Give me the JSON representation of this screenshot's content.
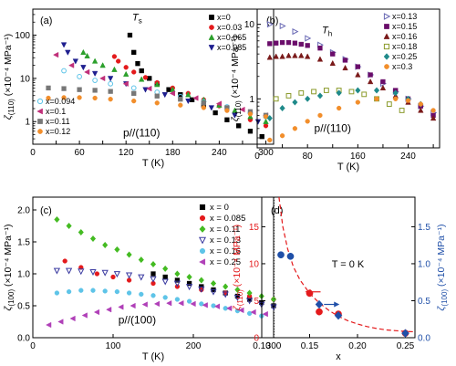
{
  "figure": {
    "panel_labels": [
      "(a)",
      "(b)",
      "(c)",
      "(d)"
    ]
  },
  "chart_data": [
    {
      "panel": "(a)",
      "type": "scatter",
      "yscale": "log",
      "xlabel": "T (K)",
      "ylabel_main": "ζ",
      "ylabel_sub": "(110)",
      "ylabel_unit": " (×10⁻⁴ MPa⁻¹)",
      "xlim": [
        0,
        310
      ],
      "ylim": [
        0.3,
        400
      ],
      "xticks": [
        0,
        30,
        60,
        90,
        120,
        150,
        180,
        210,
        240,
        270,
        300
      ],
      "xtick_labels": [
        "0",
        "",
        "60",
        "",
        "120",
        "",
        "180",
        "",
        "240",
        "",
        "300"
      ],
      "yticks": [
        1,
        10,
        100
      ],
      "ytick_labels": [
        "1",
        "10",
        "100"
      ],
      "annotations": [
        {
          "text": "T",
          "sub": "s"
        }
      ],
      "condition": "p//(110)",
      "legend_top": "top-right",
      "legend_bottom": "bottom-left",
      "series": [
        {
          "name": "x=0",
          "color": "#000000",
          "marker": "square",
          "legend": "top",
          "x": [
            125,
            130,
            135,
            140,
            150,
            160,
            175,
            190,
            205,
            220,
            235,
            250,
            265,
            280,
            295
          ],
          "y": [
            100,
            40,
            22,
            15,
            10,
            7.5,
            5.5,
            4.2,
            3.2,
            2.4,
            1.6,
            1.1,
            0.8,
            0.6,
            0.45
          ]
        },
        {
          "name": "x=0.03",
          "color": "#e41a1c",
          "marker": "circle",
          "legend": "top",
          "x": [
            105,
            110,
            120,
            130,
            145,
            160,
            180,
            200,
            220,
            240,
            260,
            280,
            300
          ],
          "y": [
            32,
            25,
            18,
            14,
            10.5,
            8,
            6,
            4.5,
            3.2,
            2.3,
            1.6,
            1.1,
            0.8
          ]
        },
        {
          "name": "x=0.065",
          "color": "#2ca02c",
          "marker": "triangle-up",
          "legend": "top",
          "x": [
            65,
            70,
            80,
            90,
            105,
            120,
            140,
            160,
            180,
            200,
            220,
            240,
            260,
            280,
            300
          ],
          "y": [
            40,
            33,
            25,
            20,
            16,
            12.5,
            9.5,
            7.2,
            5.5,
            4.2,
            3.2,
            2.4,
            1.8,
            1.3,
            1.0
          ]
        },
        {
          "name": "x=0.085",
          "color": "#1f1f8f",
          "marker": "triangle-down",
          "legend": "top",
          "x": [
            40,
            45,
            55,
            65,
            80,
            100,
            120,
            145,
            170,
            200,
            230,
            260,
            290
          ],
          "y": [
            60,
            40,
            25,
            18,
            13,
            10,
            7.5,
            5.5,
            4.2,
            3.0,
            2.1,
            1.4,
            1.0
          ]
        },
        {
          "name": "x=0.094",
          "color": "#5ec4e8",
          "marker": "circle-open",
          "legend": "bottom",
          "x": [
            40,
            60,
            80,
            100,
            130,
            160,
            190,
            220,
            250,
            280,
            300
          ],
          "y": [
            15,
            11,
            9,
            7.5,
            6,
            4.8,
            3.8,
            2.9,
            2.2,
            1.6,
            1.3
          ]
        },
        {
          "name": "x=0.1",
          "color": "#c0307a",
          "marker": "triangle-left",
          "legend": "bottom",
          "x": [
            30,
            50,
            70,
            90,
            120,
            150,
            180,
            210,
            240,
            270,
            300
          ],
          "y": [
            35,
            20,
            14,
            10,
            7.5,
            5.8,
            4.5,
            3.5,
            2.6,
            1.9,
            1.4
          ]
        },
        {
          "name": "x=0.11",
          "color": "#777777",
          "marker": "square",
          "legend": "bottom",
          "x": [
            20,
            40,
            60,
            80,
            100,
            130,
            160,
            190,
            220,
            250,
            280,
            300
          ],
          "y": [
            6,
            5.8,
            5.5,
            5.3,
            5,
            4.5,
            3.9,
            3.3,
            2.7,
            2.1,
            1.7,
            1.4
          ]
        },
        {
          "name": "x=0.12",
          "color": "#f28e2b",
          "marker": "circle",
          "legend": "bottom",
          "x": [
            20,
            40,
            60,
            80,
            100,
            130,
            160,
            190,
            220,
            250,
            280,
            300
          ],
          "y": [
            3.5,
            3.6,
            3.6,
            3.5,
            3.3,
            3.0,
            2.7,
            2.4,
            2.1,
            1.8,
            1.5,
            1.3
          ]
        }
      ]
    },
    {
      "panel": "(b)",
      "type": "scatter",
      "yscale": "log",
      "xlabel": "T (K)",
      "ylabel_main": "ζ",
      "ylabel_sub": "(110)",
      "ylabel_unit": " (×10⁻⁴ MPa⁻¹)",
      "xlim": [
        0,
        290
      ],
      "ylim": [
        0.22,
        16
      ],
      "xticks": [
        0,
        40,
        80,
        120,
        160,
        200,
        240,
        280
      ],
      "xtick_labels": [
        "0",
        "",
        "80",
        "",
        "160",
        "",
        "240",
        ""
      ],
      "yticks": [
        1,
        10
      ],
      "ytick_labels": [
        "1",
        "10"
      ],
      "annotations": [
        {
          "text": "T",
          "sub": "h"
        }
      ],
      "condition": "p//(110)",
      "legend": "top-right",
      "series": [
        {
          "name": "x=0.13",
          "color": "#6b6bb5",
          "marker": "triangle-right-open",
          "x": [
            20,
            40,
            60,
            80,
            100,
            120,
            140,
            160,
            180,
            200,
            220,
            240,
            260,
            280
          ],
          "y": [
            10,
            9.5,
            8,
            6.5,
            5.3,
            4.2,
            3.4,
            2.7,
            2.1,
            1.6,
            1.25,
            1.0,
            0.8,
            0.65
          ]
        },
        {
          "name": "x=0.15",
          "color": "#6a0d6a",
          "marker": "square",
          "x": [
            20,
            30,
            40,
            50,
            60,
            70,
            80,
            100,
            120,
            140,
            160,
            180,
            200,
            220,
            240,
            260,
            280
          ],
          "y": [
            5.5,
            5.6,
            5.7,
            5.7,
            5.6,
            5.4,
            5.2,
            4.8,
            4.0,
            3.3,
            2.7,
            2.1,
            1.7,
            1.3,
            1.0,
            0.8,
            0.6
          ]
        },
        {
          "name": "x=0.16",
          "color": "#7a1a1a",
          "marker": "triangle-up",
          "x": [
            20,
            30,
            40,
            50,
            60,
            70,
            80,
            100,
            120,
            140,
            160,
            180,
            200,
            220,
            240,
            260,
            280
          ],
          "y": [
            3.6,
            3.7,
            3.7,
            3.8,
            3.8,
            3.8,
            3.7,
            3.4,
            3.0,
            2.6,
            2.1,
            1.7,
            1.4,
            1.1,
            0.9,
            0.7,
            0.55
          ]
        },
        {
          "name": "x=0.18",
          "color": "#8a9a2a",
          "marker": "square-open",
          "x": [
            30,
            50,
            70,
            90,
            110,
            130,
            150,
            170,
            190,
            210,
            230
          ],
          "y": [
            1.0,
            1.1,
            1.2,
            1.25,
            1.3,
            1.3,
            1.25,
            1.15,
            1.0,
            0.85,
            0.7
          ]
        },
        {
          "name": "x=0.25",
          "color": "#1f8a8a",
          "marker": "diamond",
          "x": [
            20,
            40,
            60,
            80,
            100,
            130,
            160,
            190,
            220,
            240,
            260
          ],
          "y": [
            0.55,
            0.75,
            0.9,
            1.0,
            1.1,
            1.2,
            1.3,
            1.3,
            1.2,
            1.0,
            0.85
          ]
        },
        {
          "name": "x=0.3",
          "color": "#f28e2b",
          "marker": "circle",
          "x": [
            20,
            40,
            60,
            80,
            100,
            130,
            160,
            190,
            220,
            240,
            260,
            280
          ],
          "y": [
            0.28,
            0.32,
            0.4,
            0.5,
            0.6,
            0.75,
            0.9,
            1.0,
            1.0,
            0.95,
            0.85,
            0.7
          ]
        }
      ]
    },
    {
      "panel": "(c)",
      "type": "scatter",
      "yscale": "linear",
      "xlabel": "T (K)",
      "ylabel_main": "ζ",
      "ylabel_sub": "(100)",
      "ylabel_unit": " (×10⁻⁴ MPa⁻¹)",
      "xlim": [
        0,
        300
      ],
      "ylim": [
        0,
        2.2
      ],
      "xticks": [
        0,
        100,
        200,
        300
      ],
      "xtick_labels": [
        "0",
        "100",
        "200",
        "300"
      ],
      "yticks": [
        0,
        0.5,
        1.0,
        1.5,
        2.0
      ],
      "ytick_labels": [
        "0.0",
        "0.5",
        "1.0",
        "1.5",
        "2.0"
      ],
      "condition": "p//(100)",
      "legend": "top-right",
      "series": [
        {
          "name": "x = 0",
          "color": "#000000",
          "marker": "square",
          "x": [
            150,
            165,
            180,
            195,
            210,
            225,
            240,
            255,
            270,
            285,
            300
          ],
          "y": [
            1.0,
            0.95,
            0.9,
            0.85,
            0.8,
            0.75,
            0.7,
            0.65,
            0.6,
            0.55,
            0.5
          ]
        },
        {
          "name": "x = 0.085",
          "color": "#e41a1c",
          "marker": "circle",
          "x": [
            40,
            60,
            80,
            100,
            120,
            150,
            180,
            210,
            240,
            270,
            300
          ],
          "y": [
            1.2,
            1.1,
            1.0,
            0.95,
            0.9,
            0.85,
            0.8,
            0.75,
            0.7,
            0.65,
            0.6
          ]
        },
        {
          "name": "x = 0.11",
          "color": "#44bb22",
          "marker": "diamond",
          "x": [
            30,
            45,
            60,
            75,
            90,
            105,
            120,
            135,
            150,
            165,
            180,
            195,
            210,
            225,
            240,
            255,
            270,
            285,
            300
          ],
          "y": [
            1.85,
            1.75,
            1.65,
            1.55,
            1.45,
            1.38,
            1.3,
            1.22,
            1.15,
            1.08,
            1.0,
            0.95,
            0.9,
            0.85,
            0.8,
            0.75,
            0.7,
            0.65,
            0.6
          ]
        },
        {
          "name": "x = 0.13",
          "color": "#3a3aa0",
          "marker": "triangle-down-open",
          "x": [
            30,
            45,
            60,
            75,
            90,
            105,
            120,
            135,
            150,
            165,
            180,
            195,
            210,
            225,
            240,
            255,
            270,
            285,
            300
          ],
          "y": [
            1.05,
            1.05,
            1.04,
            1.03,
            1.02,
            1.0,
            0.98,
            0.95,
            0.92,
            0.88,
            0.85,
            0.8,
            0.76,
            0.72,
            0.68,
            0.63,
            0.58,
            0.52,
            0.48
          ]
        },
        {
          "name": "x = 0.16",
          "color": "#5ec4e8",
          "marker": "circle",
          "x": [
            30,
            45,
            60,
            75,
            90,
            105,
            120,
            135,
            150,
            165,
            180,
            195,
            210,
            225,
            240,
            255,
            270,
            285
          ],
          "y": [
            0.7,
            0.72,
            0.74,
            0.74,
            0.73,
            0.72,
            0.7,
            0.68,
            0.66,
            0.63,
            0.6,
            0.57,
            0.53,
            0.5,
            0.46,
            0.42,
            0.38,
            0.34
          ]
        },
        {
          "name": "x = 0.25",
          "color": "#b040b8",
          "marker": "triangle-left",
          "x": [
            20,
            35,
            50,
            65,
            80,
            95,
            110,
            125,
            140,
            155,
            170,
            185,
            200,
            215,
            230,
            245,
            260,
            275,
            290
          ],
          "y": [
            0.2,
            0.25,
            0.3,
            0.35,
            0.4,
            0.44,
            0.48,
            0.5,
            0.52,
            0.53,
            0.54,
            0.54,
            0.53,
            0.51,
            0.49,
            0.46,
            0.43,
            0.4,
            0.37
          ]
        }
      ]
    },
    {
      "panel": "(d)",
      "type": "scatter",
      "yscale": "linear",
      "xlabel": "x",
      "ylabel_left_main": "ζ",
      "ylabel_left_sub": "(110)",
      "ylabel_left_unit": " (×10⁻⁴ MPa⁻¹)",
      "ylabel_right_main": "ζ",
      "ylabel_right_sub": "(100)",
      "ylabel_right_unit": " (×10⁻⁴ MPa⁻¹)",
      "left_color": "#e41a1c",
      "right_color": "#1f4fa8",
      "xlim": [
        0.1,
        0.26
      ],
      "ylim_left": [
        0,
        19
      ],
      "ylim_right": [
        0,
        1.9
      ],
      "xticks": [
        0.1,
        0.15,
        0.2,
        0.25
      ],
      "xtick_labels": [
        "0.10",
        "0.15",
        "0.20",
        "0.25"
      ],
      "yticks_left": [
        0,
        5,
        10,
        15
      ],
      "ytick_labels_left": [
        "0",
        "5",
        "10",
        "15"
      ],
      "yticks_right": [
        0,
        0.5,
        1.0,
        1.5
      ],
      "ytick_labels_right": [
        "0.0",
        "0.5",
        "1.0",
        "1.5"
      ],
      "annotations": [
        {
          "text": "T = 0 K"
        }
      ],
      "vline_x": 0.113,
      "fit_curve": {
        "x": [
          0.118,
          0.122,
          0.127,
          0.133,
          0.14,
          0.15,
          0.16,
          0.17,
          0.18,
          0.19,
          0.2,
          0.21,
          0.22,
          0.23,
          0.24,
          0.25,
          0.26
        ],
        "y": [
          19,
          15,
          12,
          9.6,
          7.8,
          6.0,
          4.7,
          3.7,
          2.9,
          2.3,
          1.85,
          1.5,
          1.25,
          1.05,
          0.95,
          0.85,
          0.8
        ]
      },
      "series": [
        {
          "name": "ζ(110)",
          "axis": "left",
          "color": "#e41a1c",
          "marker": "circle",
          "x": [
            0.15,
            0.16,
            0.18,
            0.25
          ],
          "y": [
            6.0,
            3.5,
            3.2,
            0.6
          ]
        },
        {
          "name": "ζ(100)",
          "axis": "right",
          "color": "#1f4fa8",
          "marker": "circle",
          "x": [
            0.12,
            0.13
          ],
          "y": [
            1.12,
            1.1
          ]
        },
        {
          "name": "ζ(100)",
          "axis": "right",
          "color": "#1f4fa8",
          "marker": "diamond",
          "x": [
            0.16,
            0.18,
            0.25
          ],
          "y": [
            0.45,
            0.3,
            0.06
          ]
        }
      ]
    }
  ]
}
